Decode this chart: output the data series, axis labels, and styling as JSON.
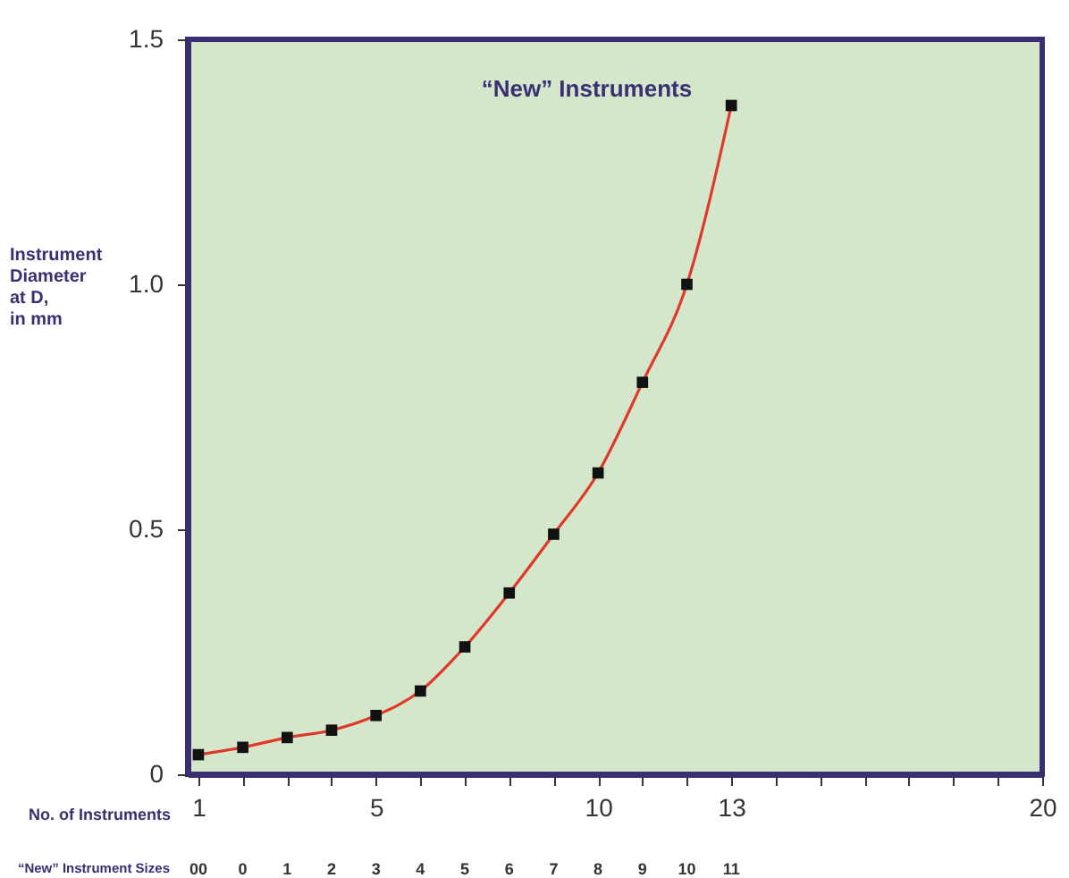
{
  "chart_data": {
    "type": "line",
    "x": [
      1,
      2,
      3,
      4,
      5,
      6,
      7,
      8,
      9,
      10,
      11,
      12,
      13
    ],
    "series": [
      {
        "name": "“New” Instruments",
        "color": "#e0392b",
        "values": [
          0.04,
          0.055,
          0.075,
          0.09,
          0.12,
          0.17,
          0.26,
          0.37,
          0.49,
          0.615,
          0.8,
          1.0,
          1.365
        ]
      }
    ],
    "xlabel": "No. of Instruments",
    "ylabel": "Instrument Diameter at D, in mm",
    "xlim": [
      0.76,
      20
    ],
    "xticks": [
      1,
      {
        "value": 2,
        "label": null
      },
      {
        "value": 3,
        "label": null
      },
      {
        "value": 4,
        "label": null
      },
      5,
      {
        "value": 6,
        "label": null
      },
      {
        "value": 7,
        "label": null
      },
      {
        "value": 8,
        "label": null
      },
      {
        "value": 9,
        "label": null
      },
      10,
      {
        "value": 11,
        "label": null
      },
      {
        "value": 12,
        "label": null
      },
      13,
      {
        "value": 14,
        "label": null
      },
      {
        "value": 15,
        "label": null
      },
      {
        "value": 16,
        "label": null
      },
      {
        "value": 17,
        "label": null
      },
      {
        "value": 18,
        "label": null
      },
      {
        "value": 19,
        "label": null
      },
      20
    ],
    "ylim": [
      0,
      1.5
    ],
    "yticks": [
      0,
      0.5,
      {
        "value": 1,
        "label": "1.0"
      },
      1.5
    ],
    "annotations": [
      "“New” Instrument Sizes",
      "00",
      "0",
      "1",
      "2",
      "3",
      "4",
      "5",
      "6",
      "7",
      "8",
      "9",
      "10",
      "11"
    ],
    "marker": "square",
    "line_style": "solid",
    "grid": false
  }
}
